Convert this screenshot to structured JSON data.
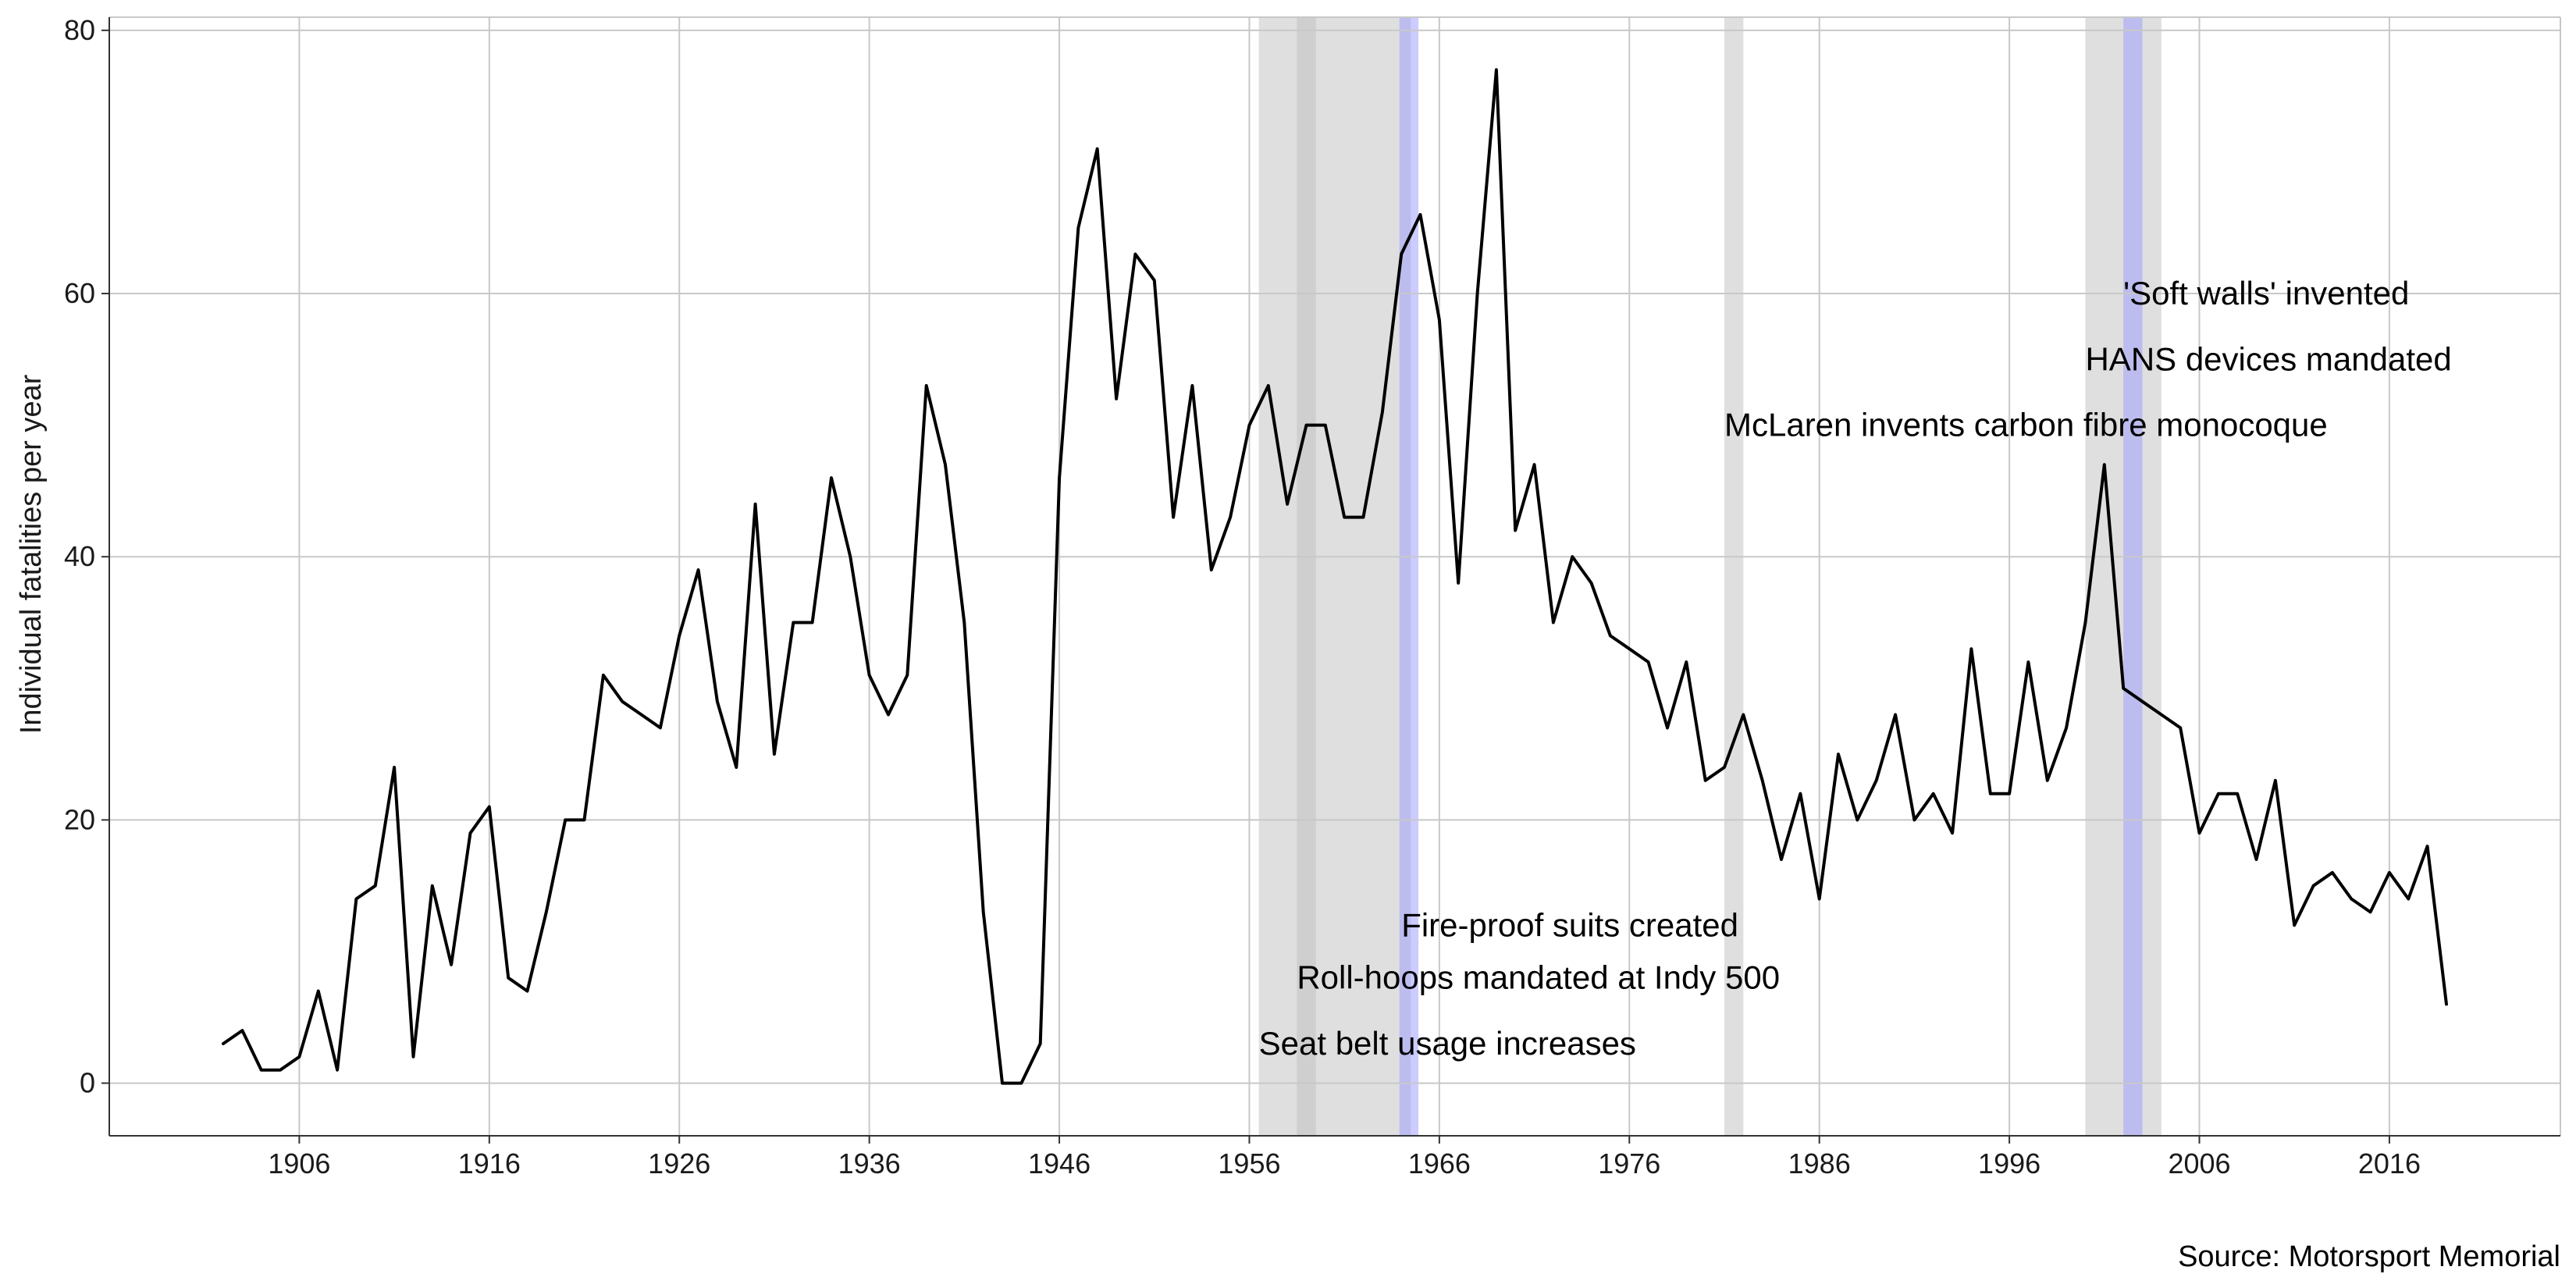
{
  "chart_data": {
    "type": "line",
    "title": "",
    "xlabel": "",
    "ylabel": "Individual fatalities per year",
    "caption": "Source: Motorsport Memorial",
    "xlim": [
      1896,
      2025
    ],
    "ylim": [
      -4,
      81
    ],
    "xticks": [
      "1906",
      "1916",
      "1926",
      "1936",
      "1946",
      "1956",
      "1966",
      "1976",
      "1986",
      "1996",
      "2006",
      "2016"
    ],
    "yticks": [
      "0",
      "20",
      "40",
      "60",
      "80"
    ],
    "grid": true,
    "line_color": "#000000",
    "band_color_gray": "#bfbfbf",
    "band_color_blue": "#9999ff",
    "series": [
      {
        "x": [
          1902,
          1903,
          1904,
          1905,
          1906,
          1907,
          1908,
          1909,
          1910,
          1911,
          1912,
          1913,
          1914,
          1915,
          1916,
          1917,
          1918,
          1919,
          1920,
          1921,
          1922,
          1923,
          1924,
          1925,
          1926,
          1927,
          1928,
          1929,
          1930,
          1931,
          1932,
          1933,
          1934,
          1935,
          1936,
          1937,
          1938,
          1939,
          1940,
          1941,
          1942,
          1943,
          1944,
          1945,
          1946,
          1947,
          1948,
          1949,
          1950,
          1951,
          1952,
          1953,
          1954,
          1955,
          1956,
          1957,
          1958,
          1959,
          1960,
          1961,
          1962,
          1963,
          1964,
          1965,
          1966,
          1967,
          1968,
          1969,
          1970,
          1971,
          1972,
          1973,
          1974,
          1975,
          1976,
          1977,
          1978,
          1979,
          1980,
          1981,
          1982,
          1983,
          1984,
          1985,
          1986,
          1987,
          1988,
          1989,
          1990,
          1991,
          1992,
          1993,
          1994,
          1995,
          1996,
          1997,
          1998,
          1999,
          2000,
          2001,
          2002,
          2003,
          2004,
          2005,
          2006,
          2007,
          2008,
          2009,
          2010,
          2011,
          2012,
          2013,
          2014,
          2015,
          2016,
          2017,
          2018,
          2019
        ],
        "y": [
          3,
          4,
          1,
          1,
          2,
          7,
          1,
          14,
          15,
          24,
          2,
          15,
          9,
          19,
          21,
          8,
          7,
          13,
          20,
          20,
          31,
          29,
          28,
          27,
          34,
          39,
          29,
          24,
          44,
          25,
          35,
          35,
          46,
          40,
          31,
          28,
          31,
          53,
          47,
          35,
          13,
          0,
          0,
          3,
          46,
          65,
          71,
          52,
          63,
          61,
          43,
          53,
          39,
          43,
          50,
          53,
          44,
          50,
          50,
          43,
          43,
          51,
          63,
          66,
          58,
          38,
          60,
          77,
          42,
          47,
          35,
          40,
          38,
          34,
          33,
          32,
          27,
          32,
          23,
          24,
          28,
          23,
          17,
          22,
          14,
          25,
          20,
          23,
          28,
          20,
          22,
          19,
          33,
          22,
          22,
          32,
          23,
          27,
          35,
          47,
          30,
          29,
          28,
          27,
          19,
          22,
          22,
          17,
          23,
          12,
          15,
          16,
          14,
          13,
          16,
          14,
          18,
          6
        ]
      }
    ],
    "bands": [
      {
        "start": 1956.5,
        "end": 1964.5,
        "color": "gray"
      },
      {
        "start": 1958.5,
        "end": 1959.5,
        "color": "gray"
      },
      {
        "start": 1963.9,
        "end": 1964.9,
        "color": "blue"
      },
      {
        "start": 1981.0,
        "end": 1982.0,
        "color": "gray"
      },
      {
        "start": 2000.0,
        "end": 2004.0,
        "color": "gray"
      },
      {
        "start": 2002.0,
        "end": 2003.0,
        "color": "blue"
      }
    ],
    "annotations": [
      {
        "text": "Seat belt usage increases",
        "x": 1956.5,
        "y": 3
      },
      {
        "text": "Roll-hoops mandated at Indy 500",
        "x": 1958.5,
        "y": 8
      },
      {
        "text": "Fire-proof suits created",
        "x": 1964.0,
        "y": 12
      },
      {
        "text": "McLaren invents carbon fibre monocoque",
        "x": 1981.0,
        "y": 50
      },
      {
        "text": "HANS devices mandated",
        "x": 2000.0,
        "y": 55
      },
      {
        "text": "'Soft walls' invented",
        "x": 2002.0,
        "y": 60
      }
    ]
  }
}
